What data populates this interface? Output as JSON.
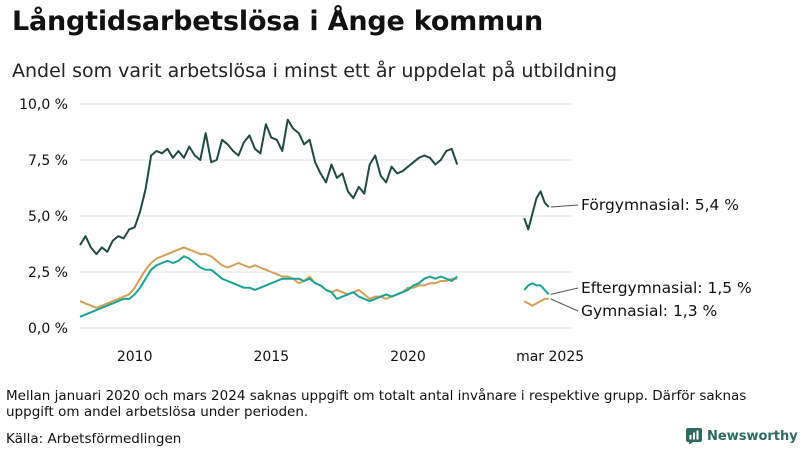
{
  "header": {
    "title": "Långtidsarbetslösa i Ånge kommun",
    "subtitle": "Andel som varit arbetslösa i minst ett år uppdelat på utbildning"
  },
  "footer": {
    "note": "Mellan januari 2020 och mars 2024 saknas uppgift om totalt antal invånare i respektive grupp. Därför saknas uppgift om andel arbetslösa under perioden.",
    "source": "Källa: Arbetsförmedlingen",
    "brand": "Newsworthy"
  },
  "colors": {
    "forgymnasial": "#1e4a42",
    "eftergymnasial": "#1aa394",
    "gymnasial": "#d4a056",
    "grid": "#e3e3e3",
    "brand": "#2c6a63"
  },
  "chart_data": {
    "type": "line",
    "title": "Långtidsarbetslösa i Ånge kommun",
    "subtitle": "Andel som varit arbetslösa i minst ett år uppdelat på utbildning",
    "xlabel": "",
    "ylabel": "",
    "xlim": [
      2008.0,
      2026.0
    ],
    "ylim": [
      0,
      10
    ],
    "y_ticks": [
      0,
      2.5,
      5,
      7.5,
      10
    ],
    "y_tick_labels": [
      "0,0 %",
      "2,5 %",
      "5,0 %",
      "7,5 %",
      "10,0 %"
    ],
    "x_ticks": [
      2010,
      2015,
      2020,
      2025.2
    ],
    "x_tick_labels": [
      "2010",
      "2015",
      "2020",
      "mar 2025"
    ],
    "grid": true,
    "series": [
      {
        "name": "Förgymnasial",
        "end_label": "Förgymnasial: 5,4 %",
        "color_key": "forgymnasial",
        "segments": [
          [
            [
              2008.0,
              3.7
            ],
            [
              2008.2,
              4.1
            ],
            [
              2008.4,
              3.6
            ],
            [
              2008.6,
              3.3
            ],
            [
              2008.8,
              3.6
            ],
            [
              2009.0,
              3.4
            ],
            [
              2009.2,
              3.9
            ],
            [
              2009.4,
              4.1
            ],
            [
              2009.6,
              4.0
            ],
            [
              2009.8,
              4.4
            ],
            [
              2010.0,
              4.5
            ],
            [
              2010.2,
              5.2
            ],
            [
              2010.4,
              6.2
            ],
            [
              2010.6,
              7.7
            ],
            [
              2010.8,
              7.9
            ],
            [
              2011.0,
              7.8
            ],
            [
              2011.2,
              8.0
            ],
            [
              2011.4,
              7.6
            ],
            [
              2011.6,
              7.9
            ],
            [
              2011.8,
              7.6
            ],
            [
              2012.0,
              8.1
            ],
            [
              2012.2,
              7.7
            ],
            [
              2012.4,
              7.5
            ],
            [
              2012.6,
              8.7
            ],
            [
              2012.8,
              7.4
            ],
            [
              2013.0,
              7.5
            ],
            [
              2013.2,
              8.4
            ],
            [
              2013.4,
              8.2
            ],
            [
              2013.6,
              7.9
            ],
            [
              2013.8,
              7.7
            ],
            [
              2014.0,
              8.3
            ],
            [
              2014.2,
              8.6
            ],
            [
              2014.4,
              8.0
            ],
            [
              2014.6,
              7.8
            ],
            [
              2014.8,
              9.1
            ],
            [
              2015.0,
              8.5
            ],
            [
              2015.2,
              8.4
            ],
            [
              2015.4,
              7.9
            ],
            [
              2015.6,
              9.3
            ],
            [
              2015.8,
              8.9
            ],
            [
              2016.0,
              8.7
            ],
            [
              2016.2,
              8.2
            ],
            [
              2016.4,
              8.4
            ],
            [
              2016.6,
              7.4
            ],
            [
              2016.8,
              6.9
            ],
            [
              2017.0,
              6.5
            ],
            [
              2017.2,
              7.3
            ],
            [
              2017.4,
              6.7
            ],
            [
              2017.6,
              6.9
            ],
            [
              2017.8,
              6.1
            ],
            [
              2018.0,
              5.8
            ],
            [
              2018.2,
              6.3
            ],
            [
              2018.4,
              6.0
            ],
            [
              2018.6,
              7.3
            ],
            [
              2018.8,
              7.7
            ],
            [
              2019.0,
              6.8
            ],
            [
              2019.2,
              6.5
            ],
            [
              2019.4,
              7.2
            ],
            [
              2019.6,
              6.9
            ],
            [
              2019.8,
              7.0
            ],
            [
              2020.0,
              7.2
            ],
            [
              2020.2,
              7.4
            ],
            [
              2020.4,
              7.6
            ],
            [
              2020.6,
              7.7
            ],
            [
              2020.8,
              7.6
            ],
            [
              2021.0,
              7.3
            ],
            [
              2021.2,
              7.5
            ],
            [
              2021.4,
              7.9
            ],
            [
              2021.6,
              8.0
            ],
            [
              2021.8,
              7.3
            ]
          ],
          [
            [
              2024.25,
              4.9
            ],
            [
              2024.4,
              4.4
            ],
            [
              2024.55,
              5.1
            ],
            [
              2024.7,
              5.8
            ],
            [
              2024.85,
              6.1
            ],
            [
              2025.0,
              5.6
            ],
            [
              2025.15,
              5.4
            ]
          ]
        ]
      },
      {
        "name": "Eftergymnasial",
        "end_label": "Eftergymnasial: 1,5 %",
        "color_key": "eftergymnasial",
        "segments": [
          [
            [
              2008.0,
              0.5
            ],
            [
              2008.2,
              0.6
            ],
            [
              2008.4,
              0.7
            ],
            [
              2008.6,
              0.8
            ],
            [
              2008.8,
              0.9
            ],
            [
              2009.0,
              1.0
            ],
            [
              2009.2,
              1.1
            ],
            [
              2009.4,
              1.2
            ],
            [
              2009.6,
              1.3
            ],
            [
              2009.8,
              1.3
            ],
            [
              2010.0,
              1.5
            ],
            [
              2010.2,
              1.8
            ],
            [
              2010.4,
              2.2
            ],
            [
              2010.6,
              2.6
            ],
            [
              2010.8,
              2.8
            ],
            [
              2011.0,
              2.9
            ],
            [
              2011.2,
              3.0
            ],
            [
              2011.4,
              2.9
            ],
            [
              2011.6,
              3.0
            ],
            [
              2011.8,
              3.2
            ],
            [
              2012.0,
              3.1
            ],
            [
              2012.2,
              2.9
            ],
            [
              2012.4,
              2.7
            ],
            [
              2012.6,
              2.6
            ],
            [
              2012.8,
              2.6
            ],
            [
              2013.0,
              2.4
            ],
            [
              2013.2,
              2.2
            ],
            [
              2013.4,
              2.1
            ],
            [
              2013.6,
              2.0
            ],
            [
              2013.8,
              1.9
            ],
            [
              2014.0,
              1.8
            ],
            [
              2014.2,
              1.8
            ],
            [
              2014.4,
              1.7
            ],
            [
              2014.6,
              1.8
            ],
            [
              2014.8,
              1.9
            ],
            [
              2015.0,
              2.0
            ],
            [
              2015.2,
              2.1
            ],
            [
              2015.4,
              2.2
            ],
            [
              2015.6,
              2.2
            ],
            [
              2015.8,
              2.2
            ],
            [
              2016.0,
              2.2
            ],
            [
              2016.2,
              2.1
            ],
            [
              2016.4,
              2.2
            ],
            [
              2016.6,
              2.0
            ],
            [
              2016.8,
              1.9
            ],
            [
              2017.0,
              1.7
            ],
            [
              2017.2,
              1.6
            ],
            [
              2017.4,
              1.3
            ],
            [
              2017.6,
              1.4
            ],
            [
              2017.8,
              1.5
            ],
            [
              2018.0,
              1.6
            ],
            [
              2018.2,
              1.4
            ],
            [
              2018.4,
              1.3
            ],
            [
              2018.6,
              1.2
            ],
            [
              2018.8,
              1.3
            ],
            [
              2019.0,
              1.4
            ],
            [
              2019.2,
              1.5
            ],
            [
              2019.4,
              1.4
            ],
            [
              2019.6,
              1.5
            ],
            [
              2019.8,
              1.6
            ],
            [
              2020.0,
              1.7
            ],
            [
              2020.2,
              1.9
            ],
            [
              2020.4,
              2.0
            ],
            [
              2020.6,
              2.2
            ],
            [
              2020.8,
              2.3
            ],
            [
              2021.0,
              2.2
            ],
            [
              2021.2,
              2.3
            ],
            [
              2021.4,
              2.2
            ],
            [
              2021.6,
              2.1
            ],
            [
              2021.8,
              2.3
            ]
          ],
          [
            [
              2024.25,
              1.7
            ],
            [
              2024.4,
              1.9
            ],
            [
              2024.55,
              2.0
            ],
            [
              2024.7,
              1.9
            ],
            [
              2024.85,
              1.9
            ],
            [
              2025.0,
              1.7
            ],
            [
              2025.15,
              1.5
            ]
          ]
        ]
      },
      {
        "name": "Gymnasial",
        "end_label": "Gymnasial: 1,3 %",
        "color_key": "gymnasial",
        "segments": [
          [
            [
              2008.0,
              1.2
            ],
            [
              2008.2,
              1.1
            ],
            [
              2008.4,
              1.0
            ],
            [
              2008.6,
              0.9
            ],
            [
              2008.8,
              1.0
            ],
            [
              2009.0,
              1.1
            ],
            [
              2009.2,
              1.2
            ],
            [
              2009.4,
              1.3
            ],
            [
              2009.6,
              1.4
            ],
            [
              2009.8,
              1.5
            ],
            [
              2010.0,
              1.8
            ],
            [
              2010.2,
              2.2
            ],
            [
              2010.4,
              2.6
            ],
            [
              2010.6,
              2.9
            ],
            [
              2010.8,
              3.1
            ],
            [
              2011.0,
              3.2
            ],
            [
              2011.2,
              3.3
            ],
            [
              2011.4,
              3.4
            ],
            [
              2011.6,
              3.5
            ],
            [
              2011.8,
              3.6
            ],
            [
              2012.0,
              3.5
            ],
            [
              2012.2,
              3.4
            ],
            [
              2012.4,
              3.3
            ],
            [
              2012.6,
              3.3
            ],
            [
              2012.8,
              3.2
            ],
            [
              2013.0,
              3.0
            ],
            [
              2013.2,
              2.8
            ],
            [
              2013.4,
              2.7
            ],
            [
              2013.6,
              2.8
            ],
            [
              2013.8,
              2.9
            ],
            [
              2014.0,
              2.8
            ],
            [
              2014.2,
              2.7
            ],
            [
              2014.4,
              2.8
            ],
            [
              2014.6,
              2.7
            ],
            [
              2014.8,
              2.6
            ],
            [
              2015.0,
              2.5
            ],
            [
              2015.2,
              2.4
            ],
            [
              2015.4,
              2.3
            ],
            [
              2015.6,
              2.3
            ],
            [
              2015.8,
              2.2
            ],
            [
              2016.0,
              2.0
            ],
            [
              2016.2,
              2.1
            ],
            [
              2016.4,
              2.3
            ],
            [
              2016.6,
              2.0
            ],
            [
              2016.8,
              1.9
            ],
            [
              2017.0,
              1.7
            ],
            [
              2017.2,
              1.6
            ],
            [
              2017.4,
              1.7
            ],
            [
              2017.6,
              1.6
            ],
            [
              2017.8,
              1.5
            ],
            [
              2018.0,
              1.6
            ],
            [
              2018.2,
              1.7
            ],
            [
              2018.4,
              1.5
            ],
            [
              2018.6,
              1.3
            ],
            [
              2018.8,
              1.4
            ],
            [
              2019.0,
              1.4
            ],
            [
              2019.2,
              1.3
            ],
            [
              2019.4,
              1.4
            ],
            [
              2019.6,
              1.5
            ],
            [
              2019.8,
              1.6
            ],
            [
              2020.0,
              1.8
            ],
            [
              2020.2,
              1.8
            ],
            [
              2020.4,
              1.9
            ],
            [
              2020.6,
              1.9
            ],
            [
              2020.8,
              2.0
            ],
            [
              2021.0,
              2.0
            ],
            [
              2021.2,
              2.1
            ],
            [
              2021.4,
              2.1
            ],
            [
              2021.6,
              2.2
            ],
            [
              2021.8,
              2.2
            ]
          ],
          [
            [
              2024.25,
              1.2
            ],
            [
              2024.4,
              1.1
            ],
            [
              2024.55,
              1.0
            ],
            [
              2024.7,
              1.1
            ],
            [
              2024.85,
              1.2
            ],
            [
              2025.0,
              1.3
            ],
            [
              2025.15,
              1.3
            ]
          ]
        ]
      }
    ]
  }
}
